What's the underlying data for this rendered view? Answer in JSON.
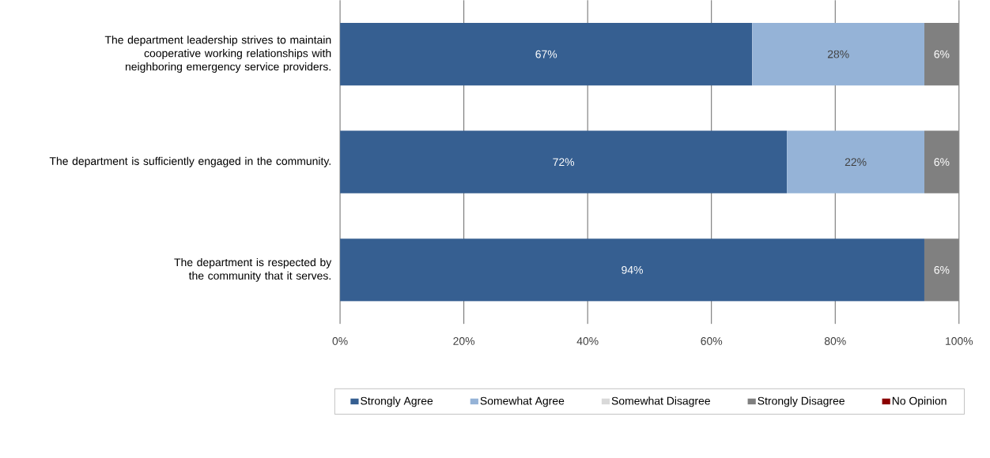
{
  "chart_data": {
    "type": "bar",
    "orientation": "horizontal",
    "stacked": true,
    "categories": [
      "The department leadership strives to maintain cooperative working relationships with neighboring emergency service providers.",
      "The department is sufficiently engaged in the community.",
      "The department is respected by the community that it serves."
    ],
    "series": [
      {
        "name": "Strongly Agree",
        "color": "#365f91",
        "values": [
          66.6,
          72.2,
          94.4
        ],
        "value_labels": [
          "67%",
          "72%",
          "94%"
        ]
      },
      {
        "name": "Somewhat Agree",
        "color": "#95b3d7",
        "values": [
          27.8,
          22.2,
          null
        ],
        "value_labels": [
          "28%",
          "22%",
          null
        ]
      },
      {
        "name": "Somewhat Disagree",
        "color": "#d9d9d9",
        "values": [
          null,
          null,
          null
        ],
        "value_labels": [
          null,
          null,
          null
        ]
      },
      {
        "name": "Strongly Disagree",
        "color": "#808080",
        "values": [
          5.6,
          5.6,
          5.6
        ],
        "value_labels": [
          "6%",
          "6%",
          "6%"
        ]
      },
      {
        "name": "No Opinion",
        "color": "#8b0000",
        "values": [
          null,
          null,
          null
        ],
        "value_labels": [
          null,
          null,
          null
        ]
      }
    ],
    "xlim": [
      0,
      100
    ],
    "xticks": [
      {
        "value": 0,
        "label": "0%"
      },
      {
        "value": 20,
        "label": "20%"
      },
      {
        "value": 40,
        "label": "40%"
      },
      {
        "value": 60,
        "label": "60%"
      },
      {
        "value": 80,
        "label": "80%"
      },
      {
        "value": 100,
        "label": "100%"
      }
    ],
    "grid": "x",
    "legend": "bottom"
  }
}
